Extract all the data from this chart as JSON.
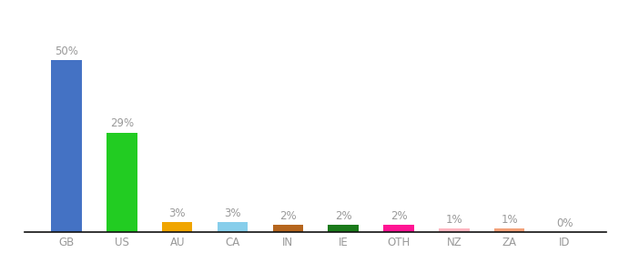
{
  "categories": [
    "GB",
    "US",
    "AU",
    "CA",
    "IN",
    "IE",
    "OTH",
    "NZ",
    "ZA",
    "ID"
  ],
  "values": [
    50,
    29,
    3,
    3,
    2,
    2,
    2,
    1,
    1,
    0
  ],
  "labels": [
    "50%",
    "29%",
    "3%",
    "3%",
    "2%",
    "2%",
    "2%",
    "1%",
    "1%",
    "0%"
  ],
  "bar_colors": [
    "#4472c4",
    "#22cc22",
    "#f0a500",
    "#87ceeb",
    "#b5651d",
    "#1a7a1a",
    "#ff1493",
    "#ffb6c1",
    "#f4a27a",
    "#dddddd"
  ],
  "ylim": [
    0,
    58
  ],
  "background_color": "#ffffff",
  "label_fontsize": 8.5,
  "tick_fontsize": 8.5,
  "label_color": "#999999",
  "tick_color": "#999999",
  "bottom_spine_color": "#111111"
}
